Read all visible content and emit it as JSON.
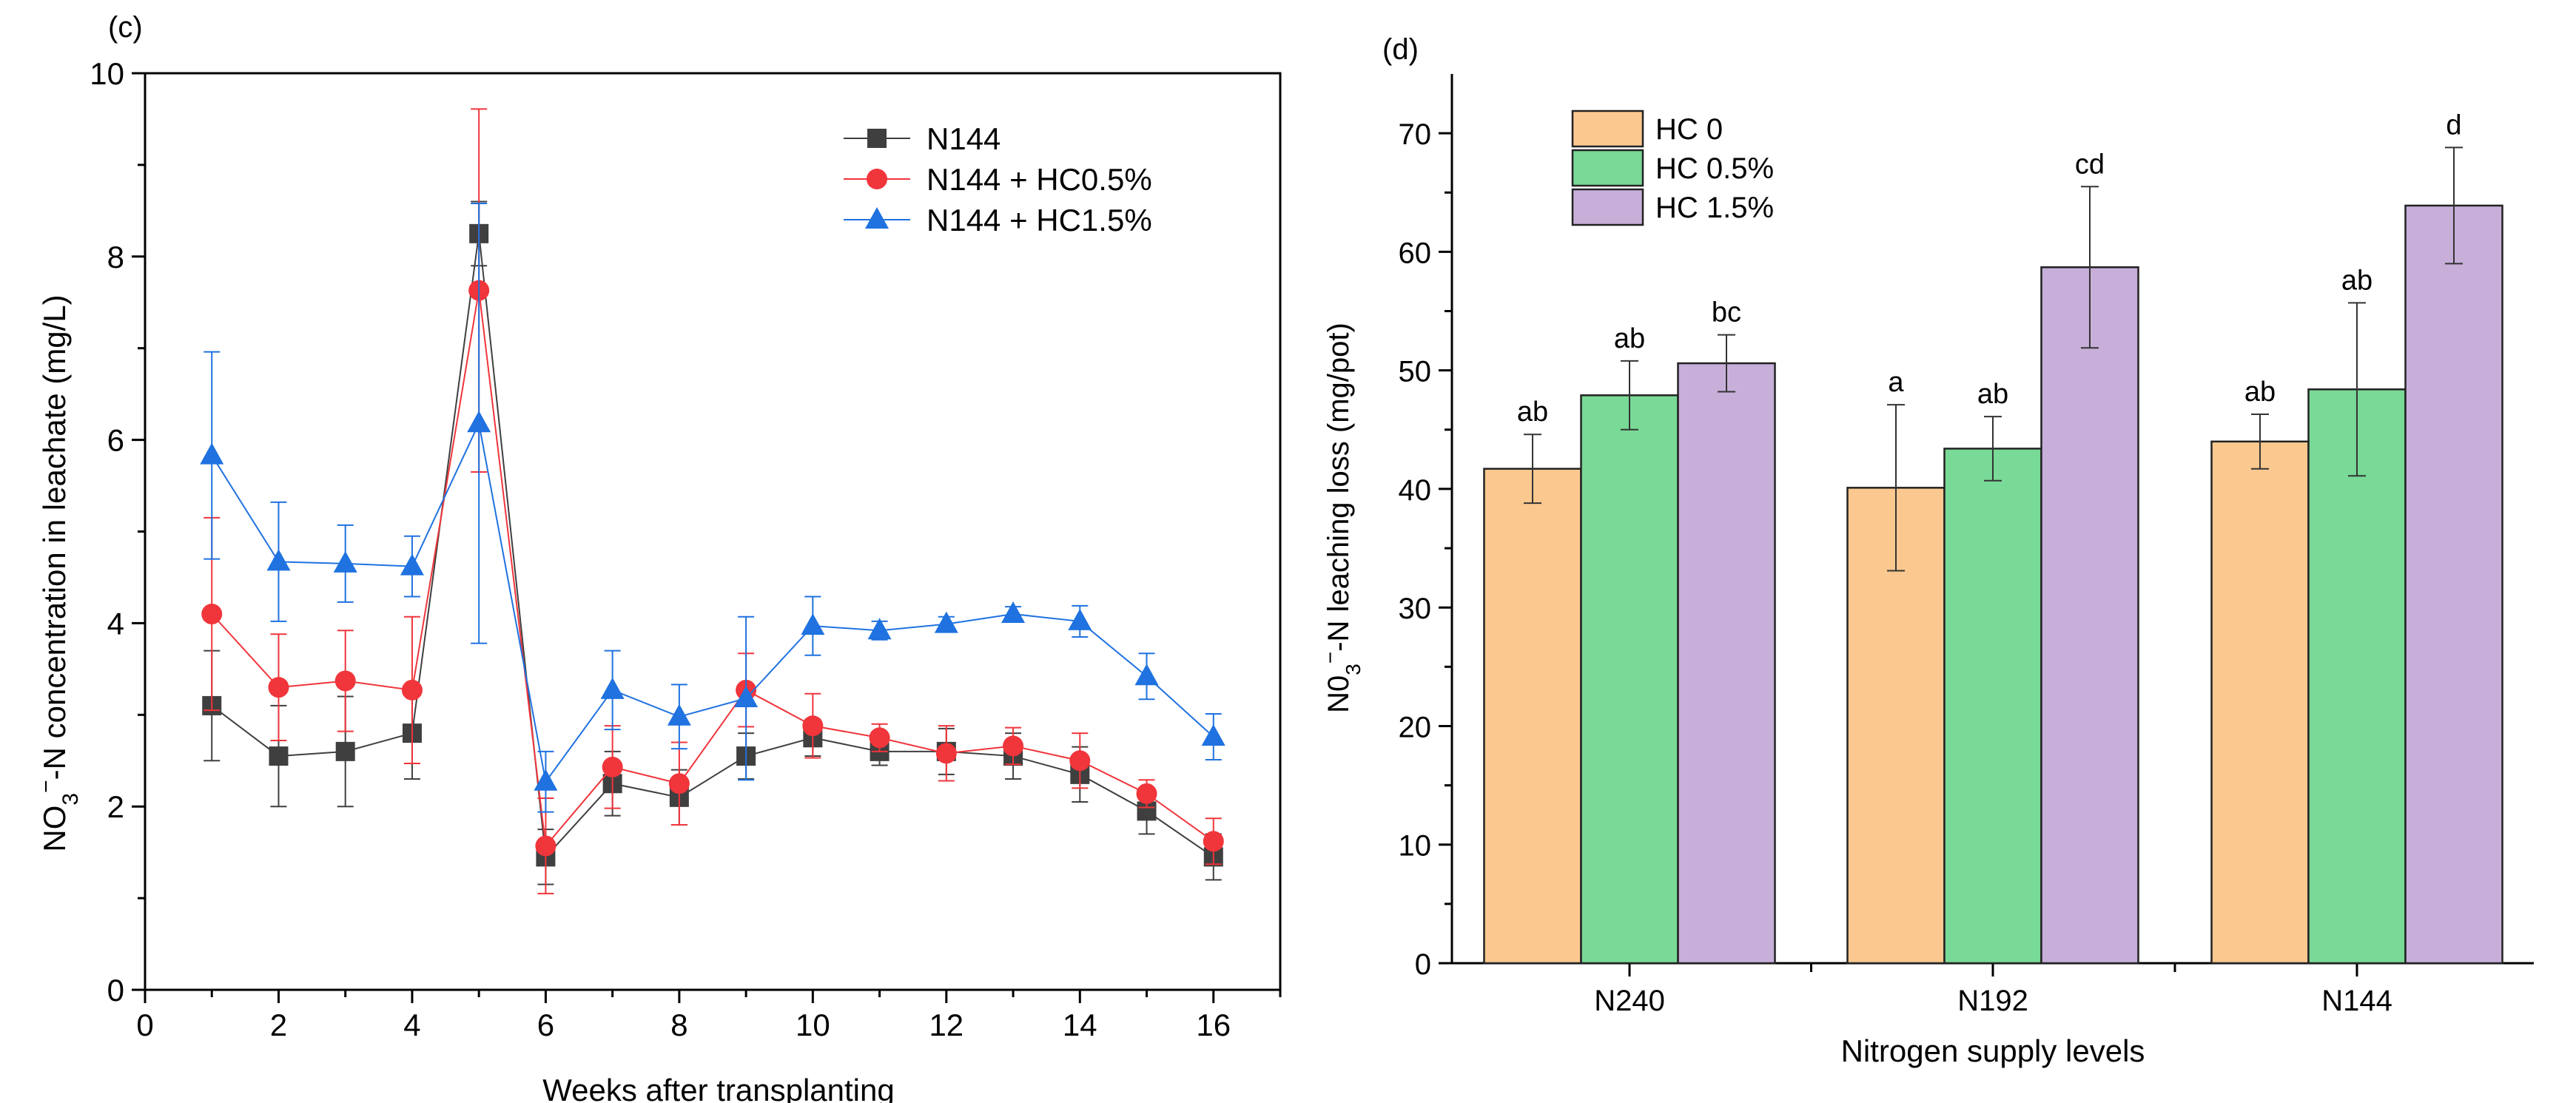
{
  "colors": {
    "n144": "#3f3f3f",
    "n144_hc05": "#f0353b",
    "n144_hc15": "#1f72e0",
    "hc0": "#fbc88f",
    "hc05": "#79d996",
    "hc15": "#c7afda"
  },
  "chart_data": [
    {
      "type": "line",
      "panel_label": "(c)",
      "title": "",
      "xlabel": "Weeks after transplanting",
      "ylabel_main": "NO",
      "ylabel_sub": "3",
      "ylabel_sup": "−",
      "ylabel_rest": "-N concentration in leachate (mg/L)",
      "xlim": [
        0,
        17
      ],
      "ylim": [
        0,
        10
      ],
      "xticks": [
        0,
        2,
        4,
        6,
        8,
        10,
        12,
        14,
        16
      ],
      "xtick_labels": [
        "0",
        "2",
        "4",
        "6",
        "8",
        "10",
        "12",
        "14",
        "16"
      ],
      "yticks": [
        0,
        2,
        4,
        6,
        8,
        10
      ],
      "ytick_labels": [
        "0",
        "2",
        "4",
        "6",
        "8",
        "10"
      ],
      "legend_position": "top-right",
      "x": [
        1,
        2,
        3,
        4,
        5,
        6,
        7,
        8,
        9,
        10,
        11,
        12,
        13,
        14,
        15,
        16
      ],
      "series": [
        {
          "name": "N144",
          "marker": "square",
          "values": [
            3.1,
            2.55,
            2.6,
            2.8,
            8.25,
            1.45,
            2.25,
            2.1,
            2.55,
            2.75,
            2.6,
            2.6,
            2.55,
            2.35,
            1.95,
            1.45
          ],
          "errors": [
            0.6,
            0.55,
            0.6,
            0.5,
            0.35,
            0.3,
            0.35,
            0.3,
            0.25,
            0.2,
            0.15,
            0.25,
            0.25,
            0.3,
            0.25,
            0.25
          ]
        },
        {
          "name": "N144 + HC0.5%",
          "marker": "circle",
          "values": [
            4.1,
            3.3,
            3.37,
            3.27,
            7.63,
            1.57,
            2.43,
            2.25,
            3.27,
            2.88,
            2.75,
            2.58,
            2.66,
            2.5,
            2.14,
            1.62
          ],
          "errors": [
            1.05,
            0.58,
            0.55,
            0.8,
            1.98,
            0.52,
            0.45,
            0.45,
            0.4,
            0.35,
            0.15,
            0.3,
            0.2,
            0.3,
            0.15,
            0.25
          ]
        },
        {
          "name": "N144 + HC1.5%",
          "marker": "triangle",
          "values": [
            5.83,
            4.67,
            4.65,
            4.62,
            6.18,
            2.27,
            3.27,
            2.98,
            3.18,
            3.97,
            3.92,
            3.99,
            4.1,
            4.02,
            3.42,
            2.76
          ],
          "errors": [
            1.13,
            0.65,
            0.42,
            0.33,
            2.4,
            0.33,
            0.43,
            0.35,
            0.89,
            0.32,
            0.1,
            0.08,
            0.08,
            0.17,
            0.25,
            0.25
          ]
        }
      ]
    },
    {
      "type": "bar",
      "panel_label": "(d)",
      "title": "",
      "xlabel": "Nitrogen supply levels",
      "ylabel_main": "N0",
      "ylabel_sub": "3",
      "ylabel_sup": "−",
      "ylabel_rest": "-N leaching loss (mg/pot)",
      "categories": [
        "N240",
        "N192",
        "N144"
      ],
      "ylim": [
        0,
        75
      ],
      "yticks": [
        0,
        10,
        20,
        30,
        40,
        50,
        60,
        70
      ],
      "ytick_labels": [
        "0",
        "10",
        "20",
        "30",
        "40",
        "50",
        "60",
        "70"
      ],
      "legend_position": "top-left",
      "series": [
        {
          "name": "HC 0",
          "values": [
            41.7,
            40.1,
            44.0
          ],
          "errors": [
            2.9,
            7.0,
            2.3
          ],
          "letters": [
            "ab",
            "a",
            "ab"
          ]
        },
        {
          "name": "HC 0.5%",
          "values": [
            47.9,
            43.4,
            48.4
          ],
          "errors": [
            2.9,
            2.7,
            7.3
          ],
          "letters": [
            "ab",
            "ab",
            "ab"
          ]
        },
        {
          "name": "HC 1.5%",
          "values": [
            50.6,
            58.7,
            63.9
          ],
          "errors": [
            2.4,
            6.8,
            4.9
          ],
          "letters": [
            "bc",
            "cd",
            "d"
          ]
        }
      ]
    }
  ]
}
